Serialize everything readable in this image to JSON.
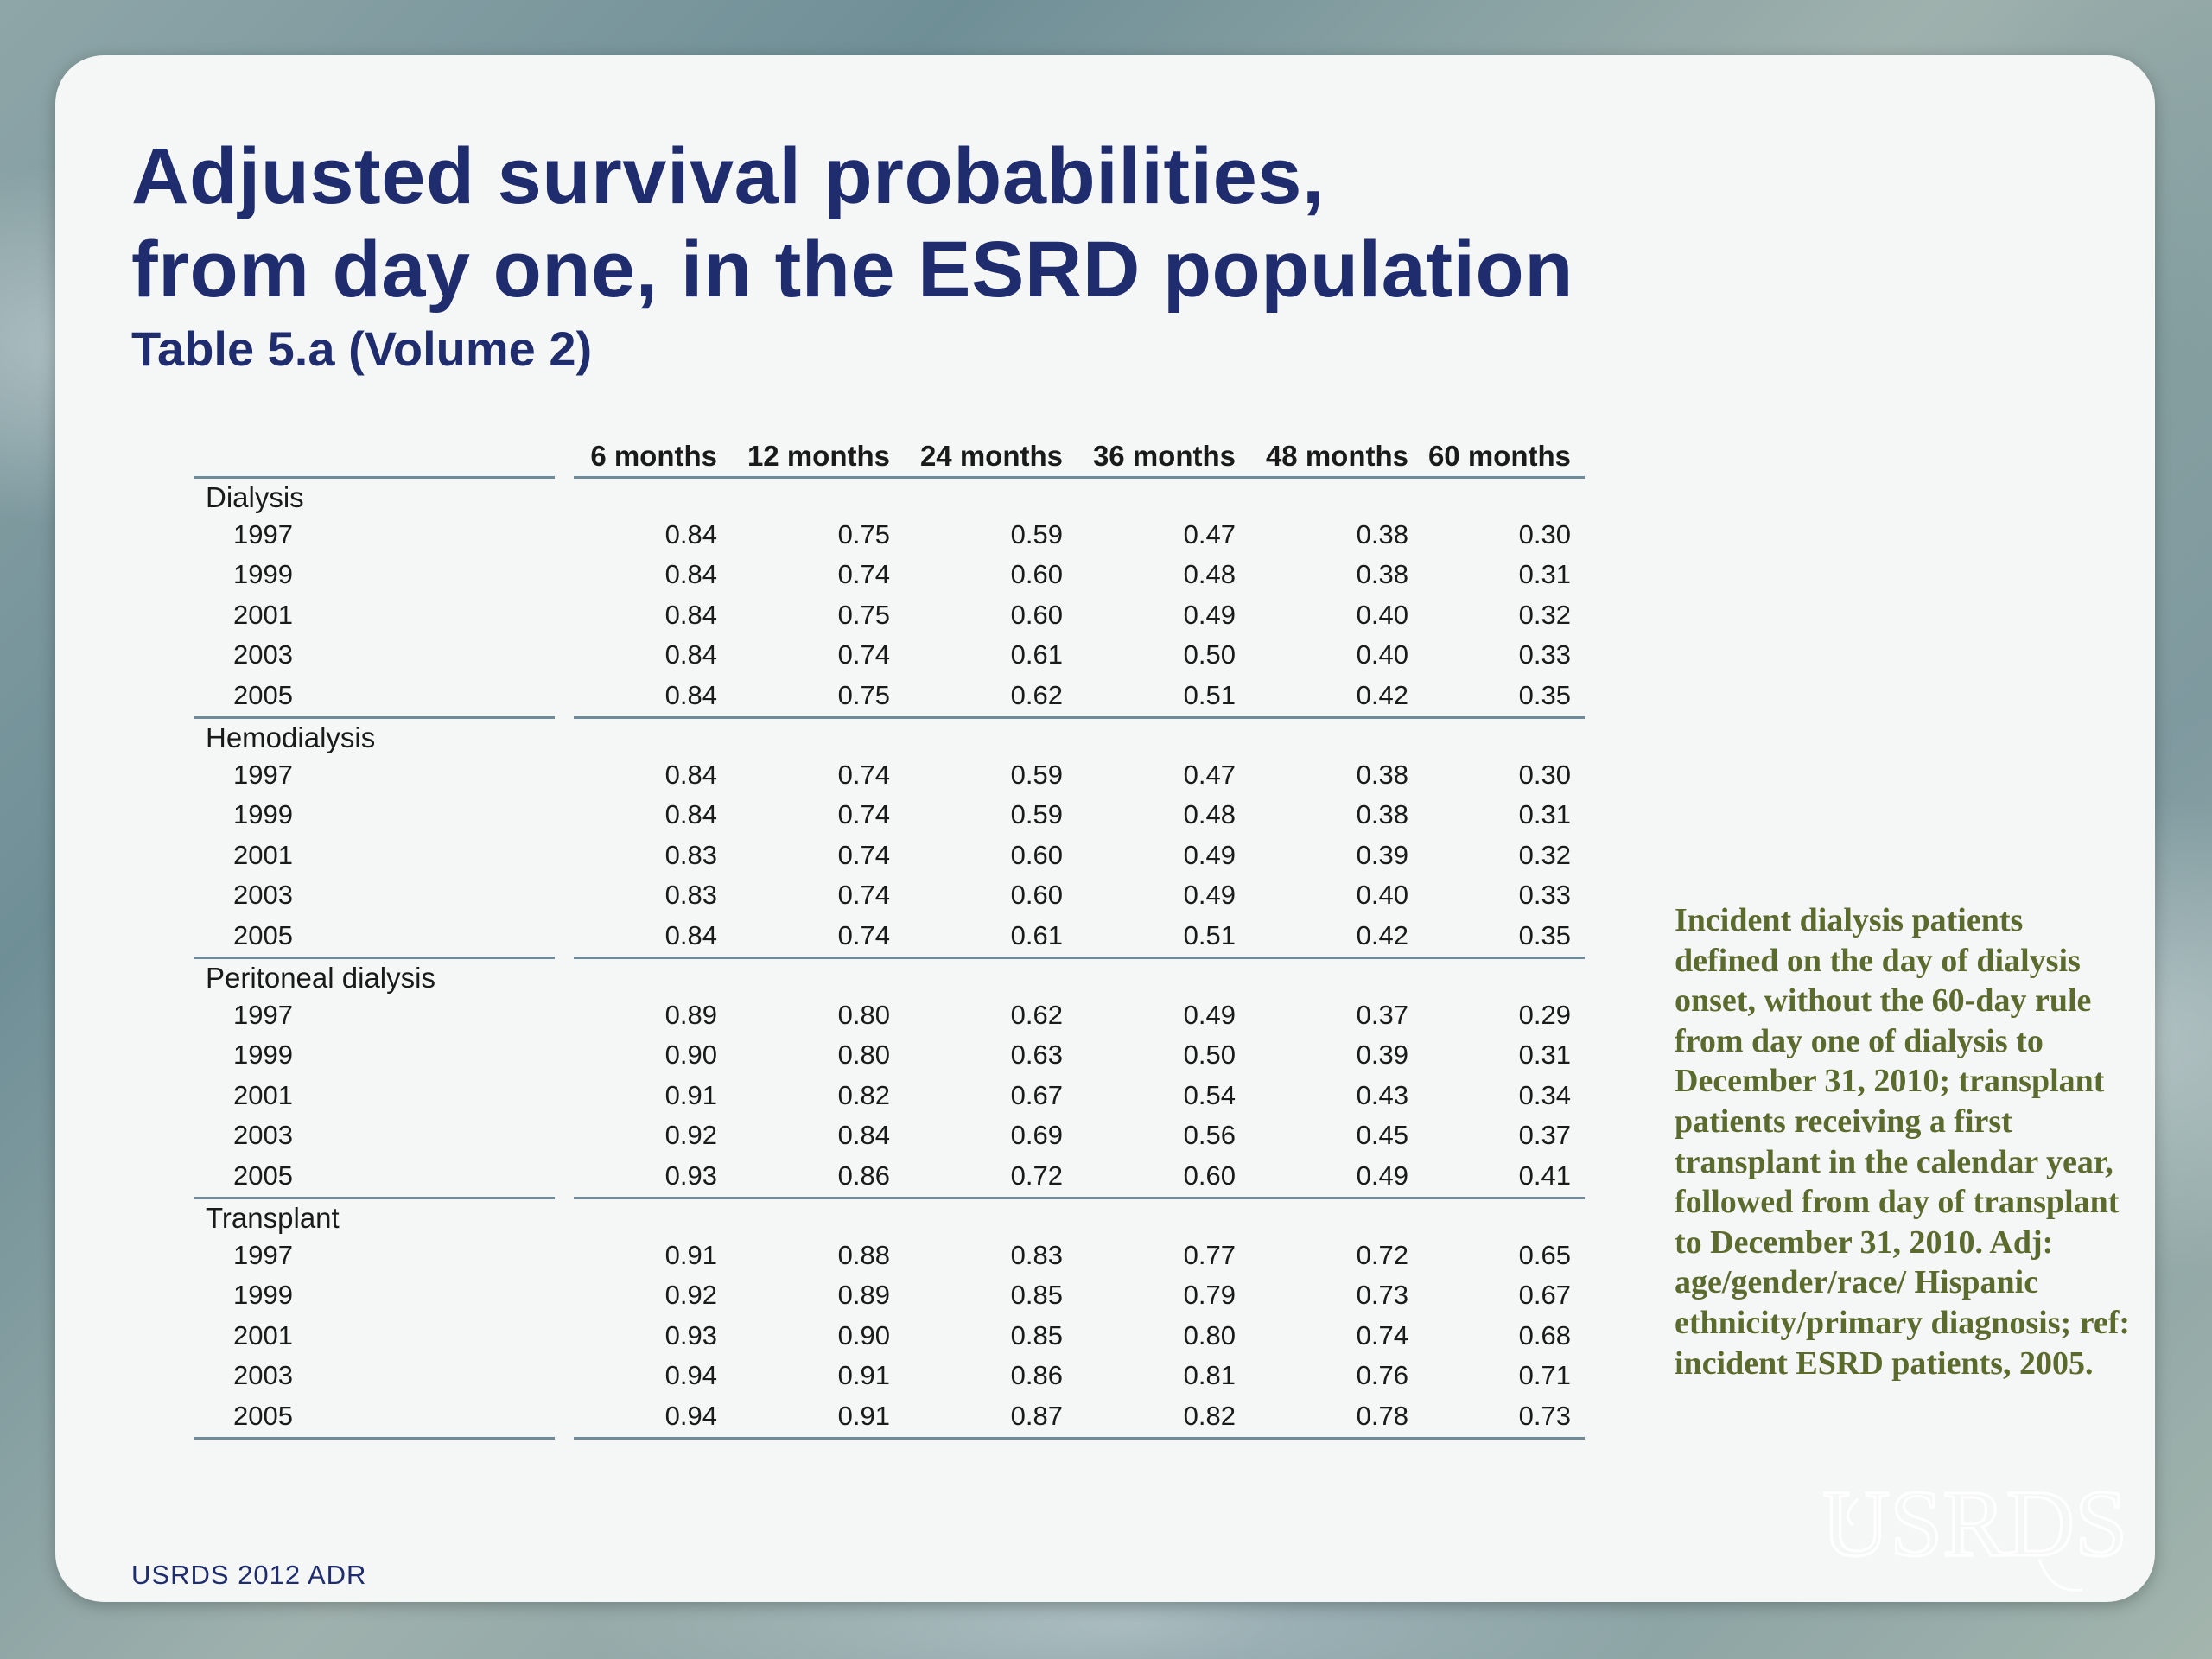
{
  "title_line1": "Adjusted survival probabilities,",
  "title_line2": "from day one, in the ESRD population",
  "subtitle": "Table 5.a (Volume 2)",
  "table": {
    "columns": [
      "6 months",
      "12 months",
      "24 months",
      "36 months",
      "48 months",
      "60 months"
    ],
    "groups": [
      {
        "label": "Dialysis",
        "rows": [
          {
            "year": "1997",
            "values": [
              "0.84",
              "0.75",
              "0.59",
              "0.47",
              "0.38",
              "0.30"
            ]
          },
          {
            "year": "1999",
            "values": [
              "0.84",
              "0.74",
              "0.60",
              "0.48",
              "0.38",
              "0.31"
            ]
          },
          {
            "year": "2001",
            "values": [
              "0.84",
              "0.75",
              "0.60",
              "0.49",
              "0.40",
              "0.32"
            ]
          },
          {
            "year": "2003",
            "values": [
              "0.84",
              "0.74",
              "0.61",
              "0.50",
              "0.40",
              "0.33"
            ]
          },
          {
            "year": "2005",
            "values": [
              "0.84",
              "0.75",
              "0.62",
              "0.51",
              "0.42",
              "0.35"
            ]
          }
        ]
      },
      {
        "label": "Hemodialysis",
        "rows": [
          {
            "year": "1997",
            "values": [
              "0.84",
              "0.74",
              "0.59",
              "0.47",
              "0.38",
              "0.30"
            ]
          },
          {
            "year": "1999",
            "values": [
              "0.84",
              "0.74",
              "0.59",
              "0.48",
              "0.38",
              "0.31"
            ]
          },
          {
            "year": "2001",
            "values": [
              "0.83",
              "0.74",
              "0.60",
              "0.49",
              "0.39",
              "0.32"
            ]
          },
          {
            "year": "2003",
            "values": [
              "0.83",
              "0.74",
              "0.60",
              "0.49",
              "0.40",
              "0.33"
            ]
          },
          {
            "year": "2005",
            "values": [
              "0.84",
              "0.74",
              "0.61",
              "0.51",
              "0.42",
              "0.35"
            ]
          }
        ]
      },
      {
        "label": "Peritoneal dialysis",
        "rows": [
          {
            "year": "1997",
            "values": [
              "0.89",
              "0.80",
              "0.62",
              "0.49",
              "0.37",
              "0.29"
            ]
          },
          {
            "year": "1999",
            "values": [
              "0.90",
              "0.80",
              "0.63",
              "0.50",
              "0.39",
              "0.31"
            ]
          },
          {
            "year": "2001",
            "values": [
              "0.91",
              "0.82",
              "0.67",
              "0.54",
              "0.43",
              "0.34"
            ]
          },
          {
            "year": "2003",
            "values": [
              "0.92",
              "0.84",
              "0.69",
              "0.56",
              "0.45",
              "0.37"
            ]
          },
          {
            "year": "2005",
            "values": [
              "0.93",
              "0.86",
              "0.72",
              "0.60",
              "0.49",
              "0.41"
            ]
          }
        ]
      },
      {
        "label": "Transplant",
        "rows": [
          {
            "year": "1997",
            "values": [
              "0.91",
              "0.88",
              "0.83",
              "0.77",
              "0.72",
              "0.65"
            ]
          },
          {
            "year": "1999",
            "values": [
              "0.92",
              "0.89",
              "0.85",
              "0.79",
              "0.73",
              "0.67"
            ]
          },
          {
            "year": "2001",
            "values": [
              "0.93",
              "0.90",
              "0.85",
              "0.80",
              "0.74",
              "0.68"
            ]
          },
          {
            "year": "2003",
            "values": [
              "0.94",
              "0.91",
              "0.86",
              "0.81",
              "0.76",
              "0.71"
            ]
          },
          {
            "year": "2005",
            "values": [
              "0.94",
              "0.91",
              "0.87",
              "0.82",
              "0.78",
              "0.73"
            ]
          }
        ]
      }
    ]
  },
  "note": "Incident dialysis patients defined on the day of dialysis onset, without the 60-day rule from day one of dialysis to December 31, 2010; transplant patients receiving a first transplant in the calendar year, followed from day of transplant to December 31, 2010. Adj: age/gender/race/ Hispanic ethnicity/primary diagnosis; ref: incident ESRD patients, 2005.",
  "footer": "USRDS 2012 ADR",
  "logo_text": "USRDS",
  "colors": {
    "title": "#1f2d6e",
    "note": "#5b6a2d",
    "rule": "#6f8a99"
  }
}
